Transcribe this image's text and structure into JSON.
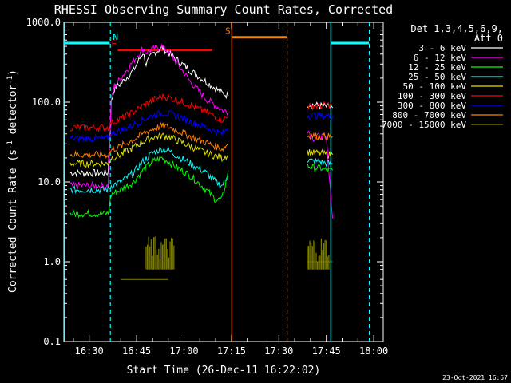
{
  "chart_data": {
    "type": "line",
    "title": "RHESSI Observing Summary Count Rates, Corrected",
    "xlabel": "Start Time (26-Dec-11 16:22:02)",
    "ylabel": "Corrected Count Rate (s⁻¹ detector⁻¹)",
    "ylabel_main": "Corrected Count Rate (s",
    "ylabel_sup1": "-1",
    "ylabel_mid": " detector",
    "ylabel_sup2": "-1",
    "ylabel_end": ")",
    "yscale": "log",
    "ylim": [
      0.1,
      1000
    ],
    "xlim": [
      "16:22",
      "18:03"
    ],
    "x_tick_labels": [
      "16:30",
      "16:45",
      "17:00",
      "17:15",
      "17:30",
      "17:45",
      "18:00"
    ],
    "x_tick_minutes": [
      30,
      45,
      60,
      75,
      90,
      105,
      120
    ],
    "y_tick_labels": [
      "0.1",
      "1.0",
      "10.0",
      "100.0",
      "1000.0"
    ],
    "y_tick_values": [
      0.1,
      1,
      10,
      100,
      1000
    ],
    "legend_header": [
      "Det 1,3,4,5,6,9,",
      "Att 0"
    ],
    "legend_position": "top-right",
    "timestamp": "23-Oct-2021 16:57",
    "series": [
      {
        "name": "3 - 6 keV",
        "color": "#ffffff",
        "seg1": [
          [
            24,
            13
          ],
          [
            36,
            13
          ],
          [
            37,
            100
          ],
          [
            38,
            150
          ],
          [
            40,
            170
          ],
          [
            44,
            250
          ],
          [
            47,
            420
          ],
          [
            48,
            300
          ],
          [
            50,
            400
          ],
          [
            53,
            480
          ],
          [
            55,
            420
          ],
          [
            58,
            330
          ],
          [
            62,
            250
          ],
          [
            67,
            180
          ],
          [
            72,
            130
          ],
          [
            74,
            120
          ]
        ],
        "seg2": [
          [
            99,
            95
          ],
          [
            103,
            90
          ],
          [
            105,
            88
          ],
          [
            107,
            85
          ]
        ]
      },
      {
        "name": "6 - 12 keV",
        "color": "#ff00ff",
        "seg1": [
          [
            24,
            9
          ],
          [
            36,
            9
          ],
          [
            37,
            110
          ],
          [
            38,
            160
          ],
          [
            40,
            200
          ],
          [
            44,
            330
          ],
          [
            47,
            470
          ],
          [
            48,
            420
          ],
          [
            50,
            460
          ],
          [
            53,
            500
          ],
          [
            55,
            430
          ],
          [
            58,
            300
          ],
          [
            62,
            180
          ],
          [
            67,
            110
          ],
          [
            72,
            80
          ],
          [
            74,
            75
          ]
        ],
        "seg2": [
          [
            99,
            45
          ],
          [
            101,
            35
          ],
          [
            103,
            38
          ],
          [
            105,
            35
          ],
          [
            107,
            3.5
          ]
        ]
      },
      {
        "name": "12 - 25 keV",
        "color": "#00ff00",
        "seg1": [
          [
            24,
            4
          ],
          [
            36,
            4
          ],
          [
            37,
            7
          ],
          [
            40,
            8
          ],
          [
            44,
            10
          ],
          [
            47,
            14
          ],
          [
            50,
            18
          ],
          [
            53,
            20
          ],
          [
            55,
            18
          ],
          [
            58,
            15
          ],
          [
            62,
            12
          ],
          [
            67,
            8
          ],
          [
            70,
            6
          ],
          [
            72,
            6
          ],
          [
            74,
            14
          ]
        ],
        "seg2": [
          [
            99,
            16
          ],
          [
            101,
            15
          ],
          [
            103,
            15
          ],
          [
            105,
            14
          ],
          [
            107,
            14
          ]
        ]
      },
      {
        "name": "25 - 50 keV",
        "color": "#00ffff",
        "seg1": [
          [
            24,
            8
          ],
          [
            36,
            8
          ],
          [
            37,
            9
          ],
          [
            40,
            10
          ],
          [
            44,
            13
          ],
          [
            47,
            18
          ],
          [
            50,
            23
          ],
          [
            53,
            26
          ],
          [
            55,
            25
          ],
          [
            58,
            21
          ],
          [
            62,
            17
          ],
          [
            67,
            13
          ],
          [
            70,
            10
          ],
          [
            72,
            9
          ],
          [
            74,
            12
          ]
        ],
        "seg2": [
          [
            99,
            19
          ],
          [
            101,
            18
          ],
          [
            103,
            18
          ],
          [
            105,
            17
          ],
          [
            107,
            17
          ]
        ]
      },
      {
        "name": "50 - 100 keV",
        "color": "#e0e000",
        "seg1": [
          [
            24,
            17
          ],
          [
            36,
            17
          ],
          [
            37,
            20
          ],
          [
            40,
            22
          ],
          [
            44,
            27
          ],
          [
            47,
            32
          ],
          [
            50,
            36
          ],
          [
            53,
            38
          ],
          [
            55,
            37
          ],
          [
            58,
            33
          ],
          [
            62,
            28
          ],
          [
            67,
            23
          ],
          [
            72,
            20
          ],
          [
            74,
            22
          ]
        ],
        "seg2": [
          [
            99,
            24
          ],
          [
            101,
            23
          ],
          [
            103,
            23
          ],
          [
            105,
            22
          ],
          [
            107,
            22
          ]
        ]
      },
      {
        "name": "100 - 300 keV",
        "color": "#ff0000",
        "seg1": [
          [
            24,
            48
          ],
          [
            36,
            48
          ],
          [
            37,
            55
          ],
          [
            40,
            62
          ],
          [
            44,
            75
          ],
          [
            47,
            90
          ],
          [
            50,
            105
          ],
          [
            53,
            118
          ],
          [
            55,
            115
          ],
          [
            58,
            105
          ],
          [
            62,
            92
          ],
          [
            67,
            75
          ],
          [
            72,
            60
          ],
          [
            74,
            65
          ]
        ],
        "seg2": [
          [
            99,
            88
          ],
          [
            101,
            90
          ],
          [
            103,
            90
          ],
          [
            105,
            92
          ],
          [
            107,
            93
          ]
        ]
      },
      {
        "name": "300 - 800 keV",
        "color": "#0000ff",
        "seg1": [
          [
            24,
            35
          ],
          [
            36,
            35
          ],
          [
            37,
            40
          ],
          [
            40,
            44
          ],
          [
            44,
            52
          ],
          [
            47,
            60
          ],
          [
            50,
            68
          ],
          [
            53,
            73
          ],
          [
            55,
            72
          ],
          [
            58,
            66
          ],
          [
            62,
            57
          ],
          [
            67,
            48
          ],
          [
            72,
            40
          ],
          [
            74,
            48
          ]
        ],
        "seg2": [
          [
            99,
            68
          ],
          [
            101,
            68
          ],
          [
            103,
            67
          ],
          [
            105,
            67
          ],
          [
            107,
            66
          ]
        ]
      },
      {
        "name": "800 - 7000 keV",
        "color": "#ff8000",
        "seg1": [
          [
            24,
            22
          ],
          [
            36,
            22
          ],
          [
            37,
            25
          ],
          [
            40,
            28
          ],
          [
            44,
            34
          ],
          [
            47,
            40
          ],
          [
            50,
            46
          ],
          [
            53,
            50
          ],
          [
            55,
            49
          ],
          [
            58,
            44
          ],
          [
            62,
            37
          ],
          [
            67,
            31
          ],
          [
            72,
            26
          ],
          [
            74,
            30
          ]
        ],
        "seg2": [
          [
            99,
            38
          ],
          [
            101,
            38
          ],
          [
            103,
            37
          ],
          [
            105,
            37
          ],
          [
            107,
            37
          ]
        ]
      },
      {
        "name": "7000 - 15000 keV",
        "color": "#808000",
        "seg1": [
          [
            40,
            0.6
          ],
          [
            45,
            0.6
          ],
          [
            50,
            0.6
          ],
          [
            55,
            0.6
          ]
        ],
        "seg2": [
          [
            99,
            1.0
          ],
          [
            107,
            1.0
          ]
        ]
      }
    ],
    "flags": [
      {
        "label": "N",
        "color": "#00ffff",
        "level": 550,
        "x1": 22,
        "x2": 36.5,
        "label_at": 37.5
      },
      {
        "label": "F",
        "color": "#ff0000",
        "level": 450,
        "x1": 39,
        "x2": 69,
        "label_at": 37
      },
      {
        "label": "S",
        "color": "#ff8000",
        "level": 650,
        "x1": 75,
        "x2": 92.5,
        "label_at": 73
      },
      {
        "label": "",
        "color": "#00ffff",
        "level": 550,
        "x1": 106.5,
        "x2": 118.5,
        "label_at": null
      }
    ],
    "vlines": [
      {
        "minute": 22.3,
        "color": "#00ffff",
        "style": "solid"
      },
      {
        "minute": 36.7,
        "color": "#00ffff",
        "style": "dashed"
      },
      {
        "minute": 75.1,
        "color": "#ff8000",
        "style": "solid"
      },
      {
        "minute": 92.6,
        "color": "#ff8000",
        "style": "dashed"
      },
      {
        "minute": 106.4,
        "color": "#00ffff",
        "style": "solid"
      },
      {
        "minute": 118.6,
        "color": "#00ffff",
        "style": "dashed"
      }
    ]
  }
}
